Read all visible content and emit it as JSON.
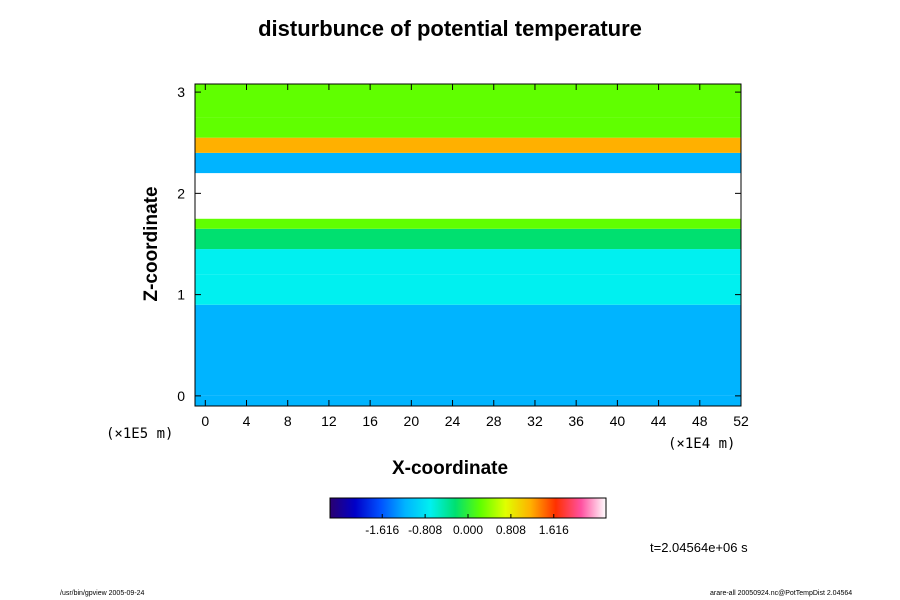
{
  "chart_data": {
    "type": "heatmap",
    "title": "disturbunce of potential temperature",
    "xlabel": "X-coordinate",
    "ylabel": "Z-coordinate",
    "x_unit": "(×1E4 m)",
    "y_unit": "(×1E5 m)",
    "xlim": [
      -1,
      52
    ],
    "ylim": [
      -0.1,
      3.08
    ],
    "x_ticks": [
      0,
      4,
      8,
      12,
      16,
      20,
      24,
      28,
      32,
      36,
      40,
      44,
      48,
      52
    ],
    "y_ticks": [
      0,
      1,
      2,
      3
    ],
    "colorbar": {
      "min": -2.6,
      "max": 2.6,
      "ticks": [
        -1.616,
        -0.808,
        0.0,
        0.808,
        1.616
      ],
      "tick_labels": [
        "-1.616",
        "-0.808",
        "0.000",
        "0.808",
        "1.616"
      ],
      "colors": [
        "#2a0070",
        "#0000c8",
        "#0050ff",
        "#00b4ff",
        "#00f0f0",
        "#00e070",
        "#60ff00",
        "#e0ff00",
        "#ffb000",
        "#ff3000",
        "#ff50a0",
        "#ffffff"
      ]
    },
    "layers": [
      {
        "z": [
          0.0,
          0.9
        ],
        "value": -1.1
      },
      {
        "z": [
          0.9,
          1.2
        ],
        "value": -0.75
      },
      {
        "z": [
          1.2,
          1.45
        ],
        "value": -0.5
      },
      {
        "z": [
          1.45,
          1.65
        ],
        "value": -0.1
      },
      {
        "z": [
          1.65,
          1.75
        ],
        "value": 0.35
      },
      {
        "z": [
          1.75,
          2.2
        ],
        "value": 3.0
      },
      {
        "z": [
          2.2,
          2.4
        ],
        "value": -0.9
      },
      {
        "z": [
          2.4,
          2.55
        ],
        "value": 1.2
      },
      {
        "z": [
          2.55,
          2.75
        ],
        "value": 0.4
      },
      {
        "z": [
          2.75,
          3.08
        ],
        "value": 0.2
      }
    ],
    "grid": false
  },
  "annotations": {
    "time": "t=2.04564e+06 s",
    "footer_left": "/usr/bin/gpview 2005-09-24",
    "footer_right": "arare-all 20050924.nc@PotTempDist 2.04564"
  }
}
